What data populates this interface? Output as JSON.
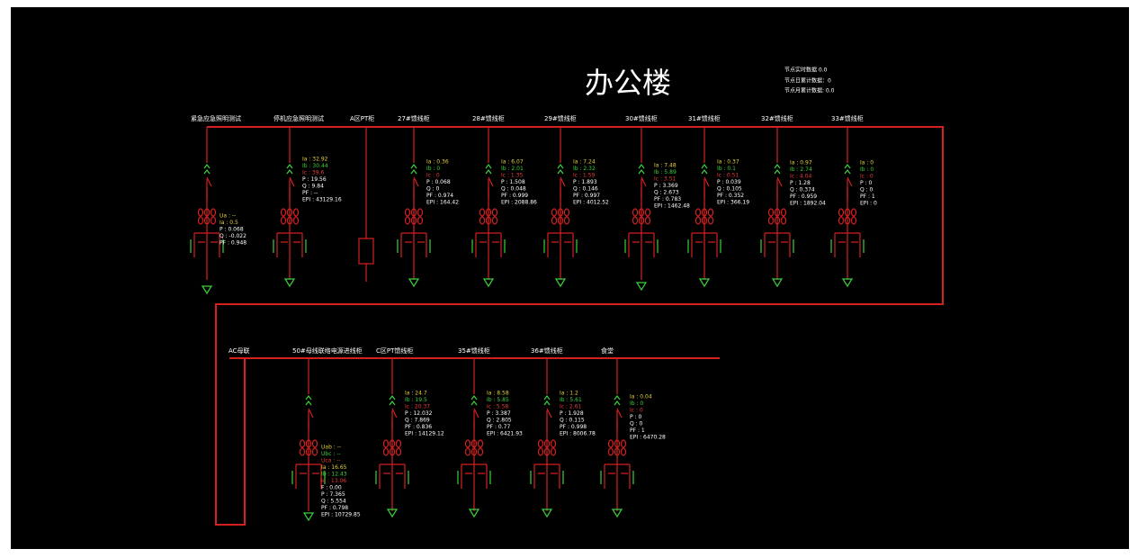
{
  "header": {
    "title": "办公楼",
    "stats": [
      "节点实时数据 0.0",
      "节点日累计数据：0",
      "节点月累计数据: 0.0"
    ]
  },
  "top_row": [
    {
      "label": "紧急应急照明测试",
      "readings": [
        {
          "text": "Ua : --",
          "color": "#e8d23a"
        },
        {
          "text": "Ia : 0.5",
          "color": "#e8d23a"
        },
        {
          "text": "P : 0.068"
        },
        {
          "text": "Q : -0.022"
        },
        {
          "text": "PF : 0.948"
        }
      ]
    },
    {
      "label": "停机应急照明测试",
      "readings": [
        {
          "text": "Ia : 32.92",
          "color": "#e8d23a"
        },
        {
          "text": "Ib : 30.44",
          "color": "#3ad23a"
        },
        {
          "text": "Ic : 39.6",
          "color": "#e83a3a"
        },
        {
          "text": "P : 19.56"
        },
        {
          "text": "Q : 9.84"
        },
        {
          "text": "PF : --"
        },
        {
          "text": "EPI : 43129.16"
        }
      ]
    },
    {
      "label": "A区PT柜",
      "readings": []
    },
    {
      "label": "27#馈线柜",
      "readings": [
        {
          "text": "Ia : 0.36",
          "color": "#e8d23a"
        },
        {
          "text": "Ib : 0",
          "color": "#3ad23a"
        },
        {
          "text": "Ic : 0",
          "color": "#e83a3a"
        },
        {
          "text": "P : 0.068"
        },
        {
          "text": "Q : 0"
        },
        {
          "text": "PF : 0.974"
        },
        {
          "text": "EPI : 164.42"
        }
      ]
    },
    {
      "label": "28#馈线柜",
      "readings": [
        {
          "text": "Ia : 6.07",
          "color": "#e8d23a"
        },
        {
          "text": "Ib : 2.01",
          "color": "#3ad23a"
        },
        {
          "text": "Ic : 1.35",
          "color": "#e83a3a"
        },
        {
          "text": "P : 1.508"
        },
        {
          "text": "Q : 0.048"
        },
        {
          "text": "PF : 0.999"
        },
        {
          "text": "EPI : 2088.86"
        }
      ]
    },
    {
      "label": "29#馈线柜",
      "readings": [
        {
          "text": "Ia : 7.24",
          "color": "#e8d23a"
        },
        {
          "text": "Ib : 2.32",
          "color": "#3ad23a"
        },
        {
          "text": "Ic : 1.59",
          "color": "#e83a3a"
        },
        {
          "text": "P : 1.893"
        },
        {
          "text": "Q : 0.146"
        },
        {
          "text": "PF : 0.997"
        },
        {
          "text": "EPI : 4012.52"
        }
      ]
    },
    {
      "label": "30#馈线柜",
      "readings": [
        {
          "text": "Ia : 7.48",
          "color": "#e8d23a"
        },
        {
          "text": "Ib : 5.89",
          "color": "#3ad23a"
        },
        {
          "text": "Ic : 3.51",
          "color": "#e83a3a"
        },
        {
          "text": "P : 3.369"
        },
        {
          "text": "Q : 2.673"
        },
        {
          "text": "PF : 0.783"
        },
        {
          "text": "EPI : 1462.48"
        }
      ]
    },
    {
      "label": "31#馈线柜",
      "readings": [
        {
          "text": "Ia : 0.37",
          "color": "#e8d23a"
        },
        {
          "text": "Ib : 0.1",
          "color": "#3ad23a"
        },
        {
          "text": "Ic : 0.51",
          "color": "#e83a3a"
        },
        {
          "text": "P : 0.039"
        },
        {
          "text": "Q : 0.105"
        },
        {
          "text": "PF : 0.352"
        },
        {
          "text": "EPI : 366.19"
        }
      ]
    },
    {
      "label": "32#馈线柜",
      "readings": [
        {
          "text": "Ia : 0.97",
          "color": "#e8d23a"
        },
        {
          "text": "Ib : 2.74",
          "color": "#3ad23a"
        },
        {
          "text": "Ic : 4.04",
          "color": "#e83a3a"
        },
        {
          "text": "P : 1.28"
        },
        {
          "text": "Q : 0.374"
        },
        {
          "text": "PF : 0.959"
        },
        {
          "text": "EPI : 1892.04"
        }
      ]
    },
    {
      "label": "33#馈线柜",
      "readings": [
        {
          "text": "Ia : 0",
          "color": "#e8d23a"
        },
        {
          "text": "Ib : 0",
          "color": "#3ad23a"
        },
        {
          "text": "Ic : 0",
          "color": "#e83a3a"
        },
        {
          "text": "P : 0"
        },
        {
          "text": "Q : 0"
        },
        {
          "text": "PF : 1"
        },
        {
          "text": "EPI : 0"
        }
      ]
    }
  ],
  "bottom_row": [
    {
      "label": "AC母联",
      "readings": []
    },
    {
      "label": "50#母线联络电源进线柜",
      "readings": [
        {
          "text": "Uab : --",
          "color": "#e8d23a"
        },
        {
          "text": "Ubc : --",
          "color": "#3ad23a"
        },
        {
          "text": "Uca : --",
          "color": "#e83a3a"
        },
        {
          "text": "Ia : 16.65",
          "color": "#e8d23a"
        },
        {
          "text": "Ib : 12.43",
          "color": "#3ad23a"
        },
        {
          "text": "Ic : 13.06",
          "color": "#e83a3a"
        },
        {
          "text": "F : 0.00"
        },
        {
          "text": "P : 7.365"
        },
        {
          "text": "Q : 5.554"
        },
        {
          "text": "PF : 0.798"
        },
        {
          "text": "EPI : 10729.85"
        }
      ]
    },
    {
      "label": "C区PT馈线柜",
      "readings": [
        {
          "text": "Ia : 24.7",
          "color": "#e8d23a"
        },
        {
          "text": "Ib : 19.5",
          "color": "#3ad23a"
        },
        {
          "text": "Ic : 20.37",
          "color": "#e83a3a"
        },
        {
          "text": "P : 12.032"
        },
        {
          "text": "Q : 7.869"
        },
        {
          "text": "PF : 0.836"
        },
        {
          "text": "EPI : 14129.12"
        }
      ]
    },
    {
      "label": "35#馈线柜",
      "readings": [
        {
          "text": "Ia : 8.58",
          "color": "#e8d23a"
        },
        {
          "text": "Ib : 5.85",
          "color": "#3ad23a"
        },
        {
          "text": "Ic : 5.58",
          "color": "#e83a3a"
        },
        {
          "text": "P : 3.387"
        },
        {
          "text": "Q : 2.805"
        },
        {
          "text": "PF : 0.77"
        },
        {
          "text": "EPI : 6421.93"
        }
      ]
    },
    {
      "label": "36#馈线柜",
      "readings": [
        {
          "text": "Ia : 1.2",
          "color": "#e8d23a"
        },
        {
          "text": "Ib : 5.61",
          "color": "#3ad23a"
        },
        {
          "text": "Ic : 2.61",
          "color": "#e83a3a"
        },
        {
          "text": "P : 1.928"
        },
        {
          "text": "Q : 0.115"
        },
        {
          "text": "PF : 0.998"
        },
        {
          "text": "EPI : 8006.78"
        }
      ]
    },
    {
      "label": "食堂",
      "readings": [
        {
          "text": "Ia : 0.04",
          "color": "#e8d23a"
        },
        {
          "text": "Ib : 0",
          "color": "#3ad23a"
        },
        {
          "text": "Ic : 0",
          "color": "#e83a3a"
        },
        {
          "text": "P : 0"
        },
        {
          "text": "Q : 0"
        },
        {
          "text": "PF : 1"
        },
        {
          "text": "EPI : 6470.28"
        }
      ]
    }
  ]
}
